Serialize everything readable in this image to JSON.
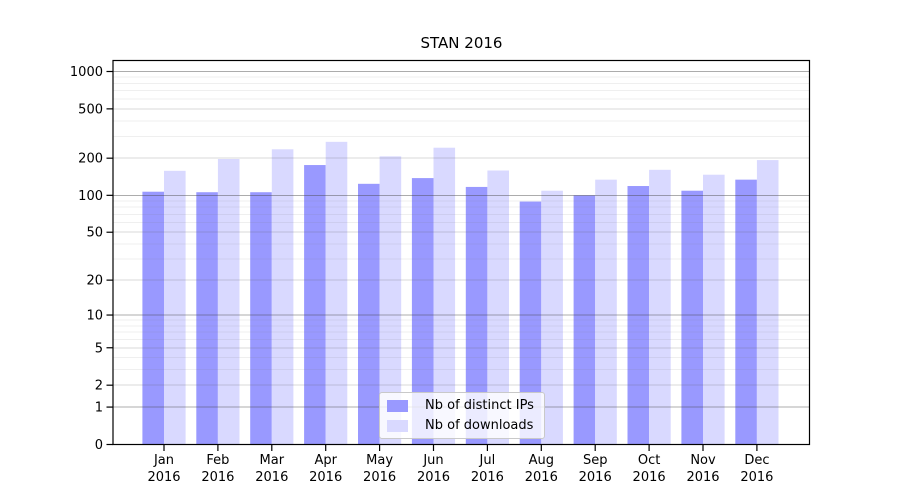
{
  "chart_data": {
    "type": "bar",
    "title": "STAN 2016",
    "categories": [
      "Jan",
      "Feb",
      "Mar",
      "Apr",
      "May",
      "Jun",
      "Jul",
      "Aug",
      "Sep",
      "Oct",
      "Nov",
      "Dec"
    ],
    "category_year": "2016",
    "series": [
      {
        "name": "Nb of distinct IPs",
        "color": "#9999ff",
        "values": [
          107,
          106,
          106,
          176,
          124,
          138,
          117,
          89,
          100,
          119,
          109,
          134
        ]
      },
      {
        "name": "Nb of downloads",
        "color": "#d9d9ff",
        "values": [
          158,
          197,
          236,
          271,
          207,
          243,
          159,
          109,
          134,
          161,
          147,
          193
        ]
      }
    ],
    "y_axis": {
      "scale": "log1p",
      "range": [
        0,
        1000
      ],
      "ticks": [
        1000,
        500,
        200,
        100,
        50,
        20,
        10,
        5,
        2,
        1,
        0
      ],
      "tick_labels": [
        "1000",
        "500",
        "200",
        "100",
        "50",
        "20",
        "10",
        "5",
        "2",
        "1",
        "0"
      ]
    },
    "x_axis": {
      "tick_label_format": "month over year"
    },
    "legend": {
      "position": "lower center"
    },
    "grid": true
  }
}
